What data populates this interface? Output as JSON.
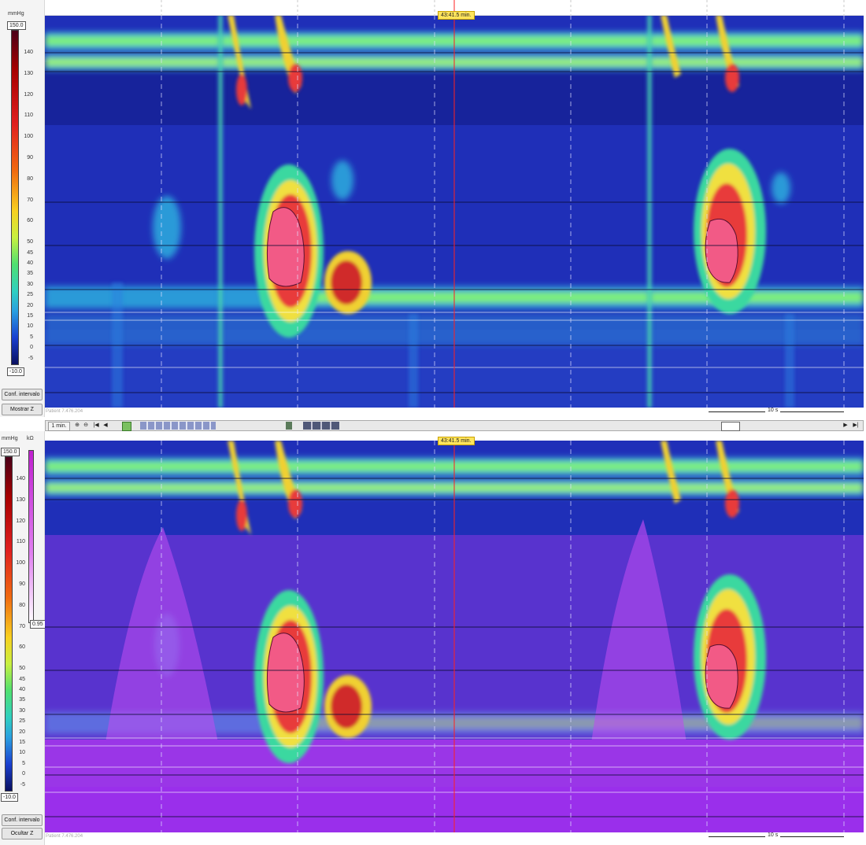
{
  "top_panel": {
    "unit": "mmHg",
    "max_value": "150.0",
    "min_value": "-10.0",
    "ticks": [
      "140",
      "130",
      "120",
      "110",
      "100",
      "90",
      "80",
      "70",
      "60",
      "50",
      "45",
      "40",
      "35",
      "30",
      "25",
      "20",
      "15",
      "10",
      "5",
      "0",
      "-5"
    ],
    "buttons": {
      "range": "Conf. intervalo",
      "z": "Mostrar Z"
    },
    "time": "43:41.5 min.",
    "patient": "Patient 7.476.204",
    "scale": "10 s"
  },
  "toolbar": {
    "window": "1 min.",
    "zoom_in_icon": "zoom-in-icon",
    "zoom_out_icon": "zoom-out-icon"
  },
  "bottom_panel": {
    "unit_p": "mmHg",
    "unit_z": "kΩ",
    "max_value": "150.0",
    "min_value": "-10.0",
    "z_label": "0.95",
    "ticks": [
      "140",
      "130",
      "120",
      "110",
      "100",
      "90",
      "80",
      "70",
      "60",
      "50",
      "45",
      "40",
      "35",
      "30",
      "25",
      "20",
      "15",
      "10",
      "5",
      "0",
      "-5"
    ],
    "buttons": {
      "range": "Conf. intervalo",
      "z": "Ocultar Z"
    },
    "time": "43:41.5 min.",
    "patient": "Patient 7.476.204",
    "scale": "10 s"
  },
  "colors": {
    "bg": "#1826a8",
    "band": "#48e0a0",
    "hot": "#e83a3a",
    "peak": "#f25a86",
    "impedance": "#b040f0"
  }
}
